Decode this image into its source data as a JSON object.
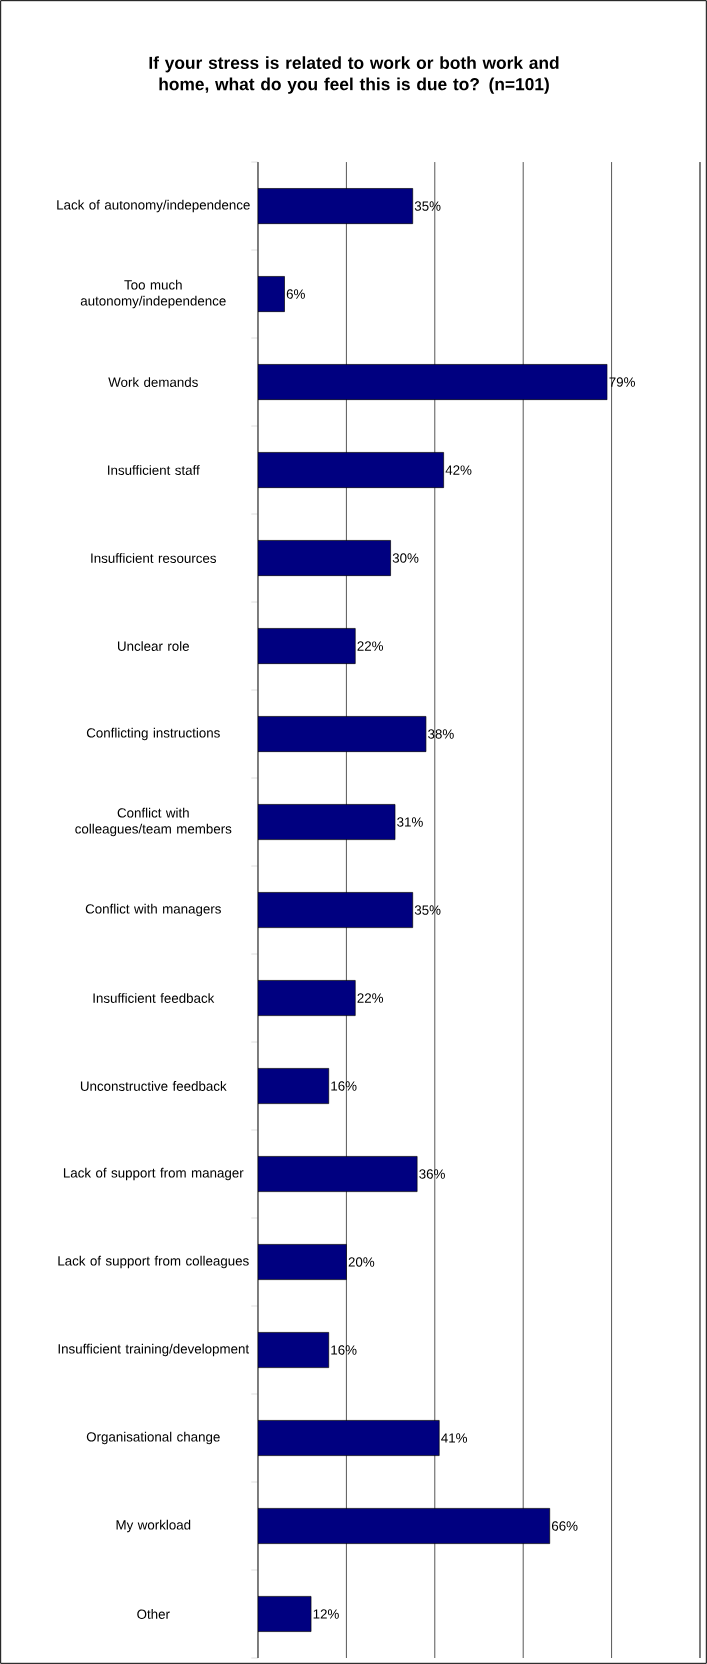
{
  "chart_data": {
    "type": "bar",
    "orientation": "horizontal",
    "title": "If your stress is related to work or both work and home, what do you feel this is due to? (n=101)",
    "categories": [
      "Lack of autonomy/independence",
      "Too much autonomy/independence",
      "Work demands",
      "Insufficient staff",
      "Insufficient resources",
      "Unclear role",
      "Conflicting instructions",
      "Conflict with colleagues/team members",
      "Conflict with managers",
      "Insufficient feedback",
      "Unconstructive feedback",
      "Lack of support from manager",
      "Lack of support from colleagues",
      "Insufficient training/development",
      "Organisational change",
      "My workload",
      "Other"
    ],
    "values": [
      35,
      6,
      79,
      42,
      30,
      22,
      38,
      31,
      35,
      22,
      16,
      36,
      20,
      16,
      41,
      66,
      12
    ],
    "value_labels": [
      "35%",
      "6%",
      "79%",
      "42%",
      "30%",
      "22%",
      "38%",
      "31%",
      "35%",
      "22%",
      "16%",
      "36%",
      "20%",
      "16%",
      "41%",
      "66%",
      "12%"
    ],
    "color": "#000080",
    "xlim": [
      0,
      100
    ],
    "xticks": [
      {
        "value": 0,
        "label": null
      },
      {
        "value": 20,
        "label": null
      },
      {
        "value": 40,
        "label": null
      },
      {
        "value": 60,
        "label": null
      },
      {
        "value": 80,
        "label": null
      },
      {
        "value": 100,
        "label": null
      }
    ],
    "grid": "x",
    "tick_labels": "y"
  }
}
